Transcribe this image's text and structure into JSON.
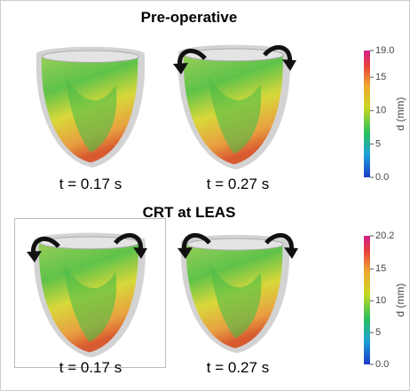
{
  "panels": [
    {
      "title": "Pre-operative",
      "images": [
        {
          "label": "t = 0.17 s"
        },
        {
          "label": "t = 0.27 s"
        }
      ],
      "colorbar": {
        "label": "d (mm)",
        "lim": [
          0,
          19
        ],
        "ticks": [
          {
            "value": 0,
            "label": "0.0"
          },
          5,
          10,
          15,
          {
            "value": 19,
            "label": "19.0"
          }
        ]
      }
    },
    {
      "title": "CRT at LEAS",
      "images": [
        {
          "label": "t = 0.17 s"
        },
        {
          "label": "t = 0.27 s"
        }
      ],
      "colorbar": {
        "label": "d (mm)",
        "lim": [
          0,
          20.2
        ],
        "ticks": [
          {
            "value": 0,
            "label": "0.0"
          },
          5,
          10,
          15,
          {
            "value": 20.2,
            "label": "20.2"
          }
        ]
      }
    }
  ]
}
